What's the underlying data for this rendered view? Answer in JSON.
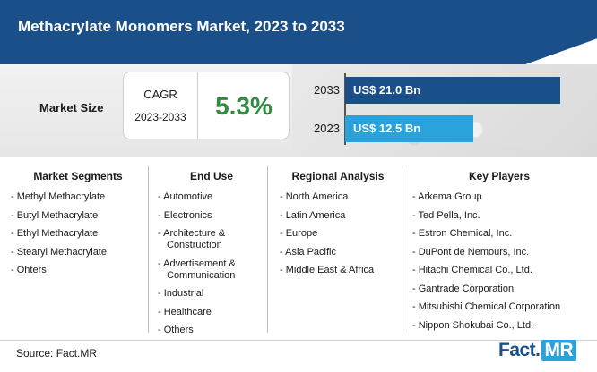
{
  "header": {
    "title": "Methacrylate Monomers Market, 2023 to 2033"
  },
  "market_size": {
    "label": "Market Size",
    "cagr_label": "CAGR",
    "cagr_period": "2023-2033",
    "cagr_value": "5.3%",
    "bars": [
      {
        "year": "2033",
        "value": "US$ 21.0 Bn",
        "amount": 21.0,
        "color": "#1b4f8a"
      },
      {
        "year": "2023",
        "value": "US$ 12.5 Bn",
        "amount": 12.5,
        "color": "#2aa3dc"
      }
    ]
  },
  "columns": [
    {
      "title": "Market Segments",
      "items": [
        "- Methyl Methacrylate",
        "- Butyl Methacrylate",
        "- Ethyl Methacrylate",
        "- Stearyl Methacrylate",
        "- Ohters"
      ]
    },
    {
      "title": "End Use",
      "items": [
        "- Automotive",
        "- Electronics",
        "- Architecture & Construction",
        "- Advertisement & Communication",
        "- Industrial",
        "- Healthcare",
        "- Others"
      ]
    },
    {
      "title": "Regional Analysis",
      "items": [
        "- North America",
        "- Latin America",
        "- Europe",
        "- Asia Pacific",
        "- Middle East & Africa"
      ]
    },
    {
      "title": "Key Players",
      "items": [
        "- Arkema Group",
        "- Ted Pella, Inc.",
        "- Estron Chemical, Inc.",
        "- DuPont de Nemours, Inc.",
        "- Hitachi Chemical Co., Ltd.",
        "- Gantrade Corporation",
        "- Mitsubishi Chemical Corporation",
        "- Nippon Shokubai Co., Ltd."
      ]
    }
  ],
  "footer": {
    "source": "Source: Fact.MR",
    "logo_main": "Fact.",
    "logo_accent": "MR"
  }
}
